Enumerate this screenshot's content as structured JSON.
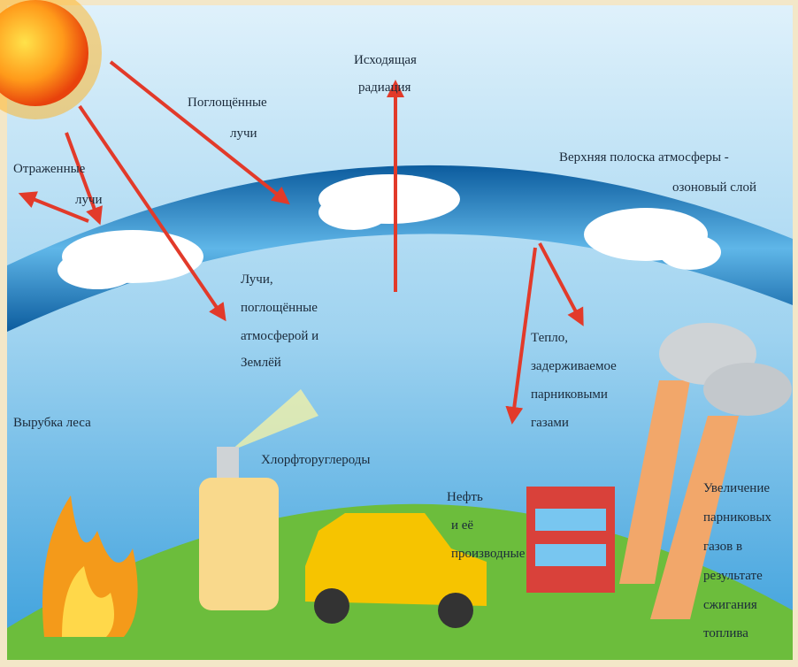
{
  "labels": {
    "reflected_rays": [
      "Отраженные",
      "лучи"
    ],
    "absorbed_rays": [
      "Поглощённые",
      "лучи"
    ],
    "outgoing_radiation": [
      "Исходящая",
      "радиация"
    ],
    "ozone_layer": [
      "Верхняя полоска атмосферы -",
      "озоновый слой"
    ],
    "rays_absorbed_by_earth": [
      "Лучи,",
      "поглощённые",
      "атмосферой и",
      "Землёй"
    ],
    "heat_trapped": [
      "Тепло,",
      "задерживаемое",
      "парниковыми",
      "газами"
    ],
    "deforestation": [
      "Вырубка леса"
    ],
    "cfc": [
      "Хлорфторуглероды"
    ],
    "oil": [
      "Нефть",
      "и её",
      "производные"
    ],
    "fuel_burning": [
      "Увеличение",
      "парниковых",
      "газов в",
      "результате",
      "сжигания",
      "топлива"
    ]
  }
}
